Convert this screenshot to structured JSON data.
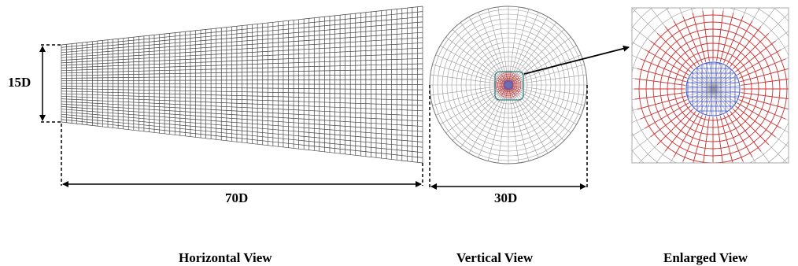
{
  "labels": {
    "height_dim": "15D",
    "length_dim": "70D",
    "diameter_dim": "30D"
  },
  "captions": {
    "horizontal": "Horizontal View",
    "vertical": "Vertical View",
    "enlarged": "Enlarged View"
  },
  "colors": {
    "mesh": "#444444",
    "mesh_light": "#9a9a9a",
    "outer_ring_mesh": "#cc3333",
    "core_mesh": "#4455cc",
    "dimension_line": "#000000"
  }
}
